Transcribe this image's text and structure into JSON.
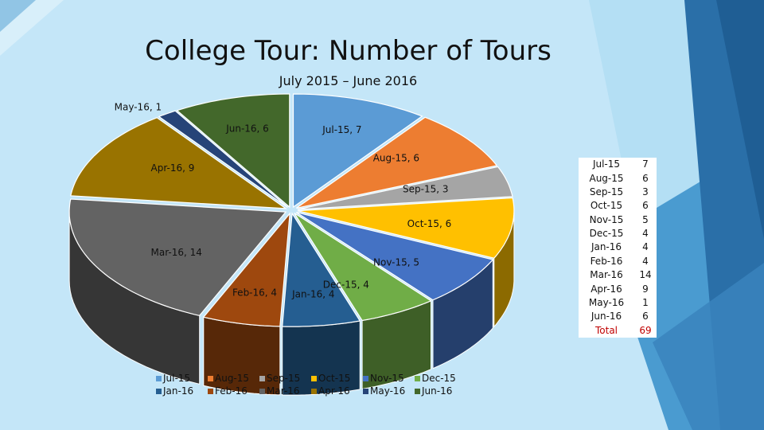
{
  "title": "College Tour: Number of Tours",
  "subtitle": "July 2015 – June 2016",
  "chart_data": {
    "type": "pie",
    "title": "College Tour: Number of Tours",
    "subtitle": "July 2015 – June 2016",
    "style": "3d-exploded",
    "legend_position": "bottom",
    "categories": [
      "Jul-15",
      "Aug-15",
      "Sep-15",
      "Oct-15",
      "Nov-15",
      "Dec-15",
      "Jan-16",
      "Feb-16",
      "Mar-16",
      "Apr-16",
      "May-16",
      "Jun-16"
    ],
    "values": [
      7,
      6,
      3,
      6,
      5,
      4,
      4,
      4,
      14,
      9,
      1,
      6
    ],
    "data_labels": [
      "Jul-15, 7",
      "Aug-15, 6",
      "Sep-15, 3",
      "Oct-15, 6",
      "Nov-15, 5",
      "Dec-15, 4",
      "Jan-16, 4",
      "Feb-16, 4",
      "Mar-16, 14",
      "Apr-16, 9",
      "May-16, 1",
      "Jun-16, 6"
    ],
    "colors": [
      "#5b9bd5",
      "#ed7d31",
      "#a5a5a5",
      "#ffc000",
      "#4472c4",
      "#70ad47",
      "#255e91",
      "#9e480e",
      "#636363",
      "#997300",
      "#264478",
      "#43682b"
    ]
  },
  "table": {
    "rows": [
      {
        "month": "Jul-15",
        "value": "7"
      },
      {
        "month": "Aug-15",
        "value": "6"
      },
      {
        "month": "Sep-15",
        "value": "3"
      },
      {
        "month": "Oct-15",
        "value": "6"
      },
      {
        "month": "Nov-15",
        "value": "5"
      },
      {
        "month": "Dec-15",
        "value": "4"
      },
      {
        "month": "Jan-16",
        "value": "4"
      },
      {
        "month": "Feb-16",
        "value": "4"
      },
      {
        "month": "Mar-16",
        "value": "14"
      },
      {
        "month": "Apr-16",
        "value": "9"
      },
      {
        "month": "May-16",
        "value": "1"
      },
      {
        "month": "Jun-16",
        "value": "6"
      }
    ],
    "total_label": "Total",
    "total_value": "69"
  },
  "theme_colors": {
    "background": "#c4e6f8",
    "deco_light": "#9ed3ef",
    "deco_mid": "#4a9bd0",
    "deco_dark": "#2a6fa8",
    "total_text": "#c00000"
  }
}
